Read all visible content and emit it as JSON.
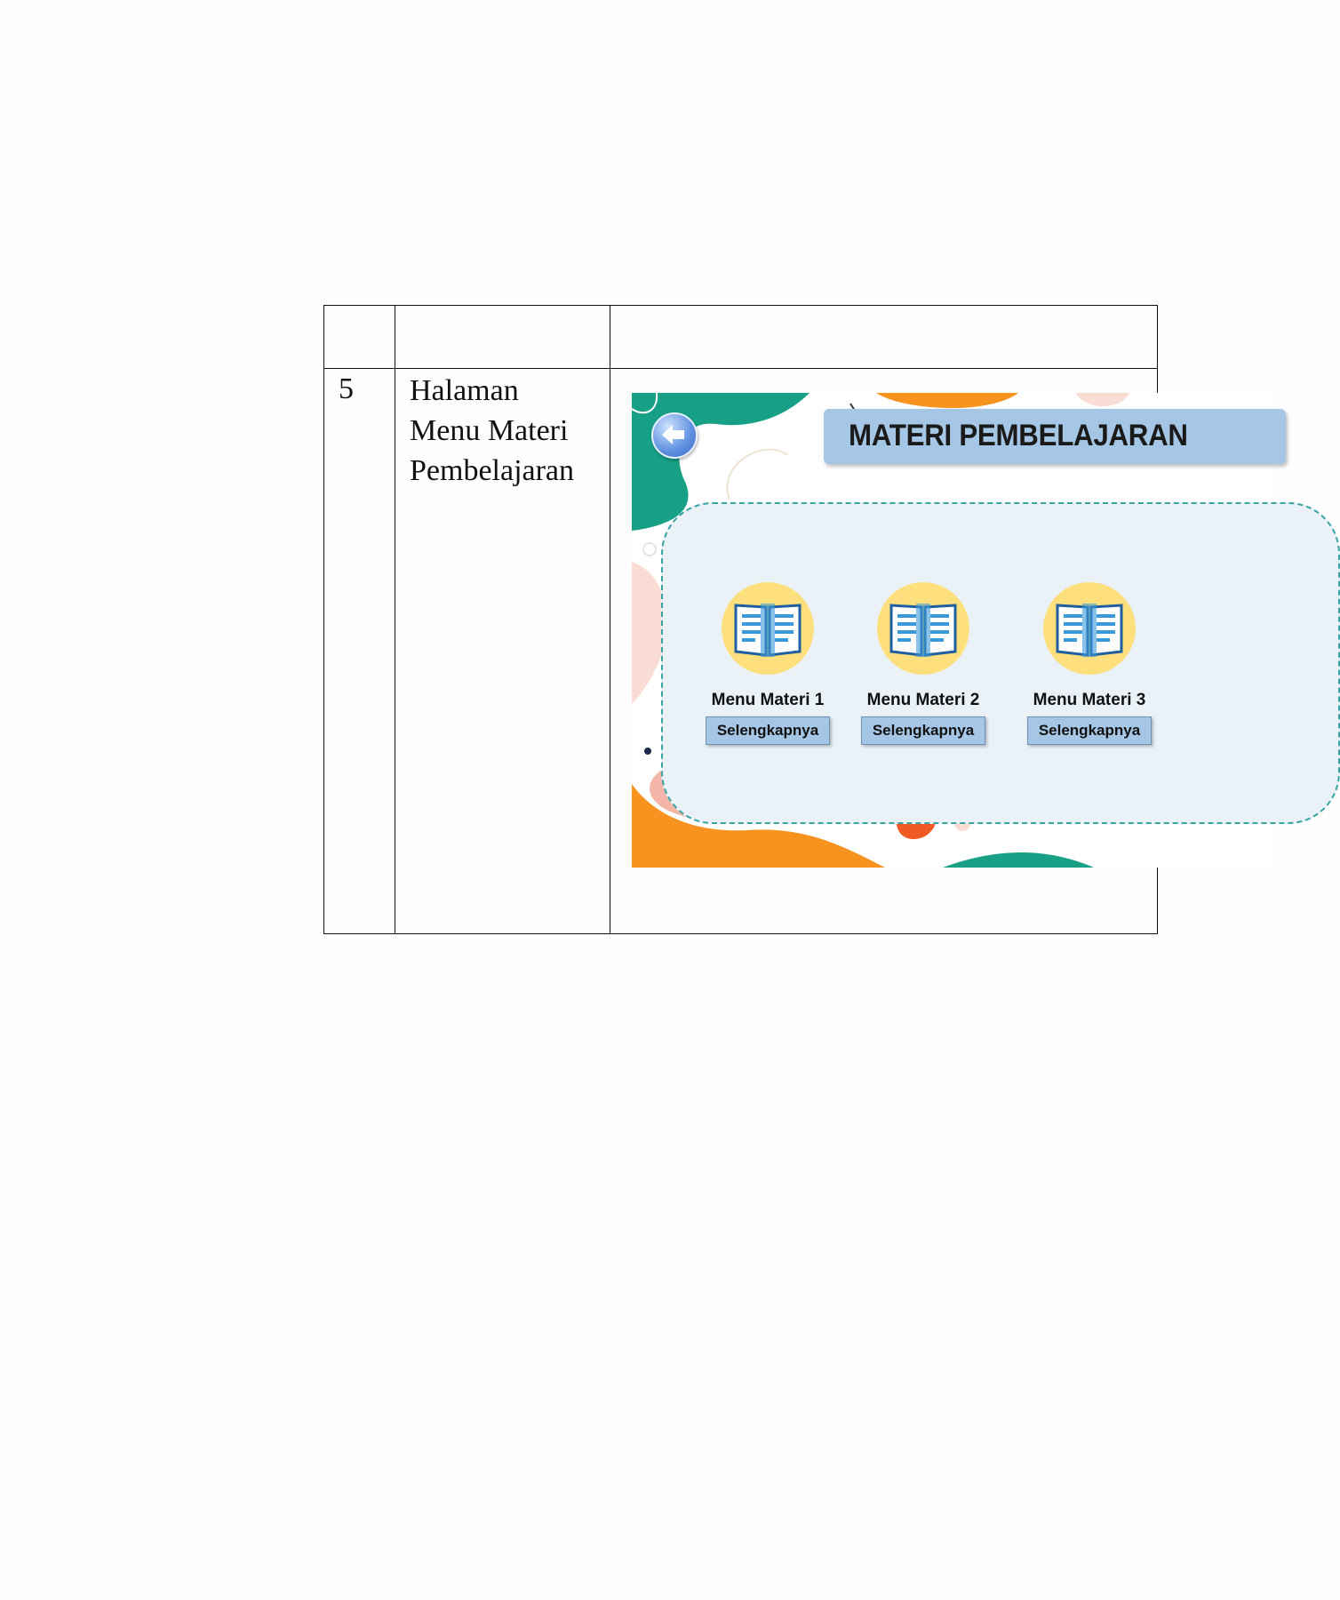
{
  "table": {
    "row": {
      "number": "5",
      "description_lines": [
        "Halaman",
        "Menu Materi",
        "Pembelajaran"
      ]
    }
  },
  "screenshot": {
    "title": "MATERI PEMBELAJARAN",
    "back_icon": "arrow-left-icon",
    "book_icon": "open-book-icon",
    "menus": [
      {
        "label": "Menu Materi 1",
        "button": "Selengkapnya"
      },
      {
        "label": "Menu Materi 2",
        "button": "Selengkapnya"
      },
      {
        "label": "Menu Materi 3",
        "button": "Selengkapnya"
      }
    ],
    "colors": {
      "teal": "#17a085",
      "orange": "#f7931e",
      "title_bar": "#a6c6e6",
      "panel": "#eaf2f8",
      "book_circle": "#fde07d"
    }
  }
}
